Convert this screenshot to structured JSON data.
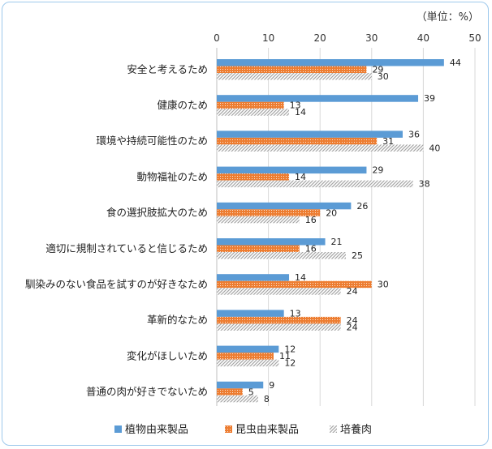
{
  "unit_label": "（単位：%）",
  "chart_data": {
    "type": "bar",
    "orientation": "horizontal",
    "title": "",
    "xlabel": "",
    "ylabel": "",
    "xlim": [
      0,
      50
    ],
    "ticks": [
      0,
      10,
      20,
      30,
      40,
      50
    ],
    "grid": true,
    "legend_position": "bottom",
    "categories": [
      "安全と考えるため",
      "健康のため",
      "環境や持続可能性のため",
      "動物福祉のため",
      "食の選択肢拡大のため",
      "適切に規制されていると信じるため",
      "馴染みのない食品を試すのが好きなため",
      "革新的なため",
      "変化がほしいため",
      "普通の肉が好きでないため"
    ],
    "series": [
      {
        "name": "植物由来製品",
        "color": "#5b9bd5",
        "pattern": "solid",
        "values": [
          44,
          39,
          36,
          29,
          26,
          21,
          14,
          13,
          12,
          9
        ]
      },
      {
        "name": "昆虫由来製品",
        "color": "#ed7d31",
        "pattern": "dots",
        "values": [
          29,
          13,
          31,
          14,
          20,
          16,
          30,
          24,
          11,
          5
        ]
      },
      {
        "name": "培養肉",
        "color": "#a5a5a5",
        "pattern": "diagonal",
        "values": [
          30,
          14,
          40,
          38,
          16,
          25,
          24,
          24,
          12,
          8
        ]
      }
    ]
  }
}
